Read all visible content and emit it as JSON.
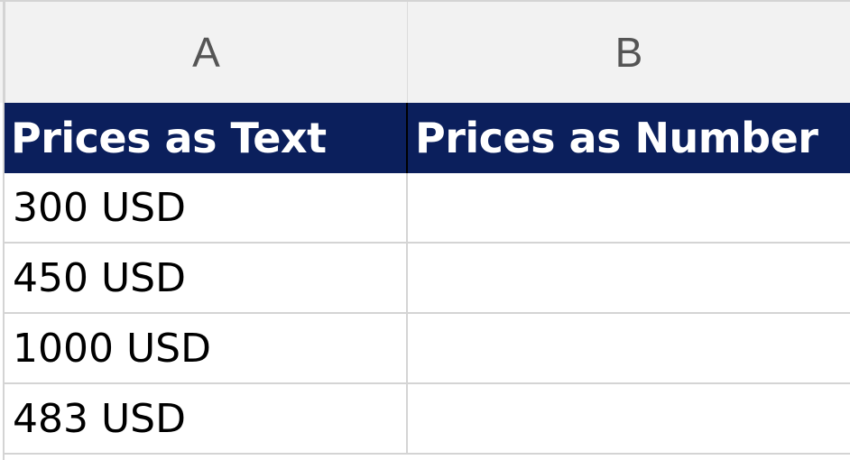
{
  "columns": {
    "a": "A",
    "b": "B"
  },
  "header": {
    "a": "Prices as Text",
    "b": "Prices as Number"
  },
  "rows": [
    {
      "a": "300 USD",
      "b": ""
    },
    {
      "a": "450 USD",
      "b": ""
    },
    {
      "a": "1000 USD",
      "b": ""
    },
    {
      "a": "483 USD",
      "b": ""
    }
  ],
  "colors": {
    "header_bg": "#0b1f5c",
    "header_text": "#ffffff",
    "grid": "#d4d4d4"
  }
}
